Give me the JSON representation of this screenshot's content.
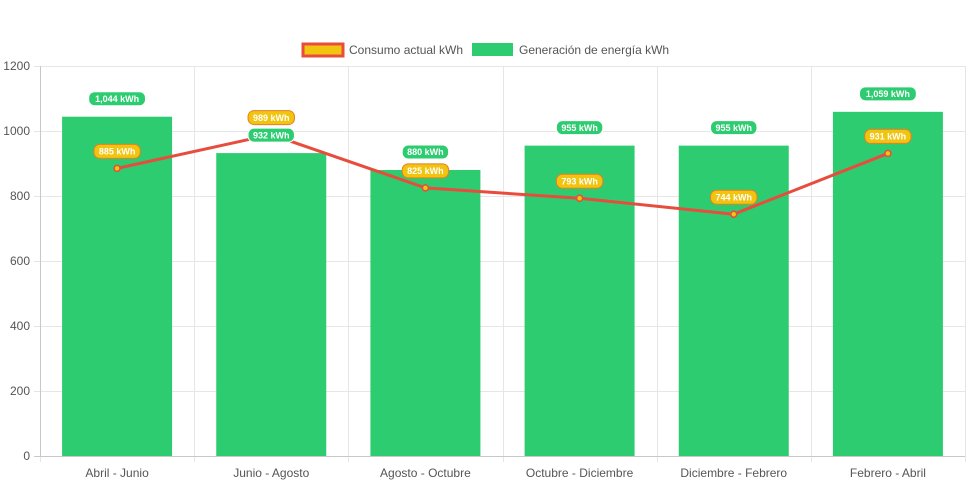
{
  "chart_data": {
    "type": "bar",
    "categories": [
      "Abril - Junio",
      "Junio - Agosto",
      "Agosto - Octubre",
      "Octubre - Diciembre",
      "Diciembre - Febrero",
      "Febrero - Abril"
    ],
    "series": [
      {
        "name": "Consumo actual kWh",
        "type": "line",
        "values": [
          885,
          989,
          825,
          793,
          744,
          931
        ],
        "labels": [
          "885 kWh",
          "989 kWh",
          "825 kWh",
          "793 kWh",
          "744 kWh",
          "931 kWh"
        ],
        "color": "#e74c3c",
        "fill_color": "#f1c40f"
      },
      {
        "name": "Generación de energía kWh",
        "type": "bar",
        "values": [
          1044,
          932,
          880,
          955,
          955,
          1059
        ],
        "labels": [
          "1,044 kWh",
          "932 kWh",
          "880 kWh",
          "955 kWh",
          "955 kWh",
          "1,059 kWh"
        ],
        "color": "#2ecc71"
      }
    ],
    "ylim": [
      0,
      1200
    ],
    "yticks": [
      0,
      200,
      400,
      600,
      800,
      1000,
      1200
    ],
    "ytick_labels": [
      "0",
      "200",
      "400",
      "600",
      "800",
      "1000",
      "1200"
    ],
    "grid": true,
    "legend_position": "top-center",
    "title": "",
    "xlabel": "",
    "ylabel": ""
  }
}
